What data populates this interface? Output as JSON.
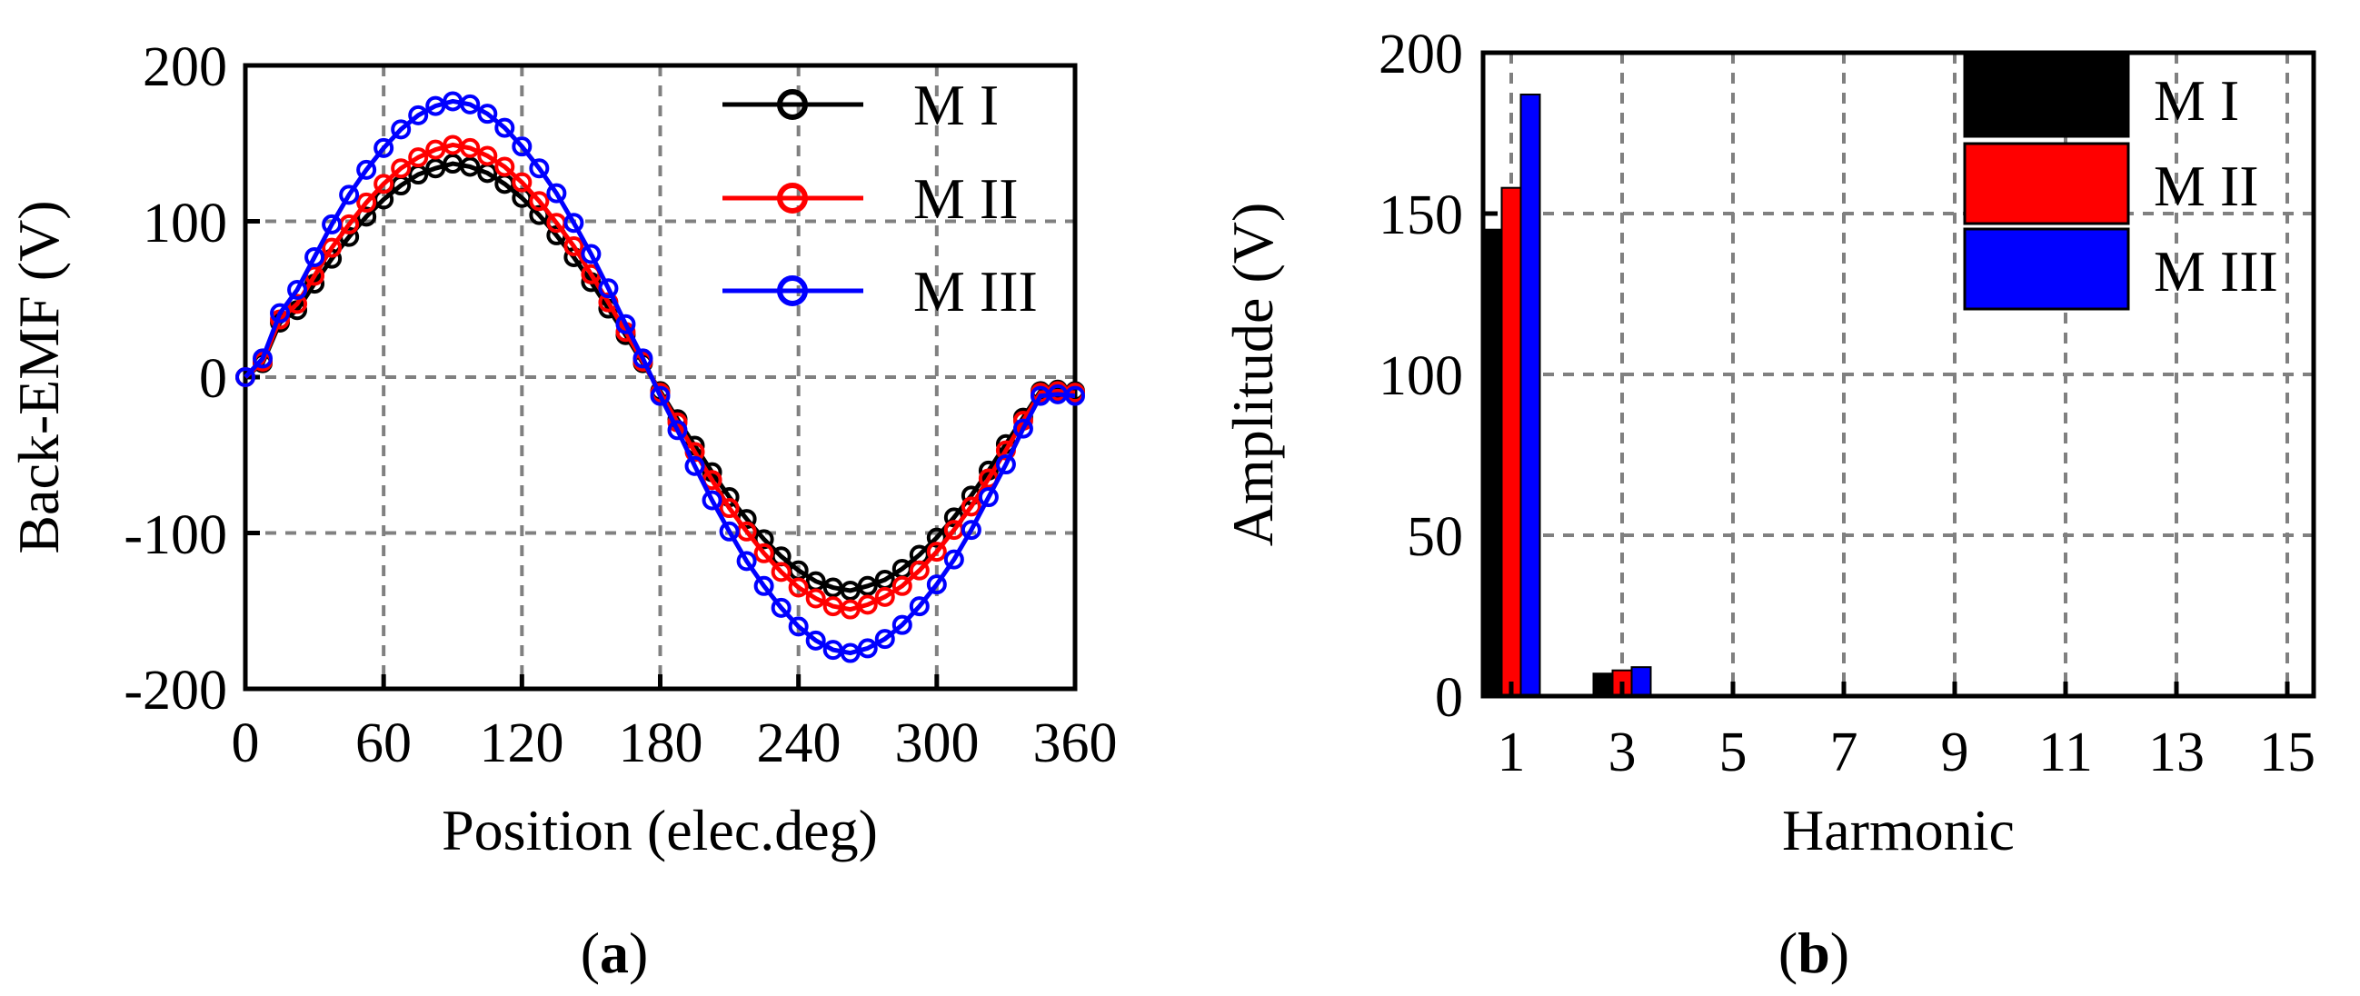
{
  "colors": {
    "m1": "#000000",
    "m2": "#ff0000",
    "m3": "#0000ff",
    "grid": "#808080"
  },
  "chart_data": [
    {
      "type": "line",
      "panel_label": "(a)",
      "panel_letter": "a",
      "xlabel": "Position (elec.deg)",
      "ylabel": "Back-EMF (V)",
      "xlim": [
        0,
        360
      ],
      "ylim": [
        -200,
        200
      ],
      "xticks": [
        0,
        60,
        120,
        180,
        240,
        300,
        360
      ],
      "yticks": [
        -200,
        -100,
        0,
        100,
        200
      ],
      "grid": true,
      "legend_position": "top-right",
      "x_step": 7.5,
      "series": [
        {
          "name": "M I",
          "amplitude": 137,
          "phase_offset_deg": 7,
          "values": [
            0,
            9,
            35,
            43,
            60,
            76,
            90,
            103,
            114,
            123,
            130,
            134,
            137,
            135,
            131,
            124,
            115,
            104,
            91,
            77,
            61,
            44,
            27,
            9,
            -9,
            -27,
            -44,
            -61,
            -77,
            -91,
            -104,
            -115,
            -124,
            -131,
            -135,
            -137,
            -134,
            -130,
            -123,
            -114,
            -103,
            -90,
            -76,
            -60,
            -43,
            -26,
            -9,
            -8,
            -9
          ]
        },
        {
          "name": "M II",
          "amplitude": 149,
          "phase_offset_deg": 7,
          "values": [
            0,
            10,
            37,
            47,
            65,
            83,
            98,
            112,
            124,
            134,
            141,
            146,
            149,
            147,
            142,
            135,
            125,
            113,
            99,
            84,
            66,
            48,
            29,
            10,
            -10,
            -29,
            -48,
            -66,
            -84,
            -99,
            -113,
            -125,
            -135,
            -142,
            -147,
            -149,
            -146,
            -141,
            -134,
            -124,
            -112,
            -98,
            -83,
            -65,
            -47,
            -28,
            -10,
            -9,
            -10
          ]
        },
        {
          "name": "M III",
          "amplitude": 177,
          "phase_offset_deg": 7,
          "values": [
            0,
            12,
            41,
            56,
            77,
            98,
            117,
            133,
            147,
            159,
            168,
            174,
            177,
            175,
            169,
            160,
            148,
            134,
            118,
            99,
            79,
            57,
            34,
            12,
            -12,
            -34,
            -57,
            -79,
            -99,
            -118,
            -134,
            -148,
            -160,
            -169,
            -175,
            -177,
            -174,
            -168,
            -159,
            -147,
            -133,
            -117,
            -98,
            -77,
            -56,
            -33,
            -12,
            -11,
            -12
          ]
        }
      ]
    },
    {
      "type": "bar",
      "panel_label": "(b)",
      "panel_letter": "b",
      "xlabel": "Harmonic",
      "ylabel": "Amplitude (V)",
      "xlim": [
        0,
        15
      ],
      "ylim": [
        0,
        200
      ],
      "xticks": [
        1,
        3,
        5,
        7,
        9,
        11,
        13,
        15
      ],
      "yticks": [
        0,
        50,
        100,
        150,
        200
      ],
      "grid": true,
      "legend_position": "top-right",
      "categories": [
        1,
        3
      ],
      "series": [
        {
          "name": "M I",
          "values": [
            145,
            7
          ]
        },
        {
          "name": "M II",
          "values": [
            158,
            8
          ]
        },
        {
          "name": "M III",
          "values": [
            187,
            9
          ]
        }
      ]
    }
  ]
}
